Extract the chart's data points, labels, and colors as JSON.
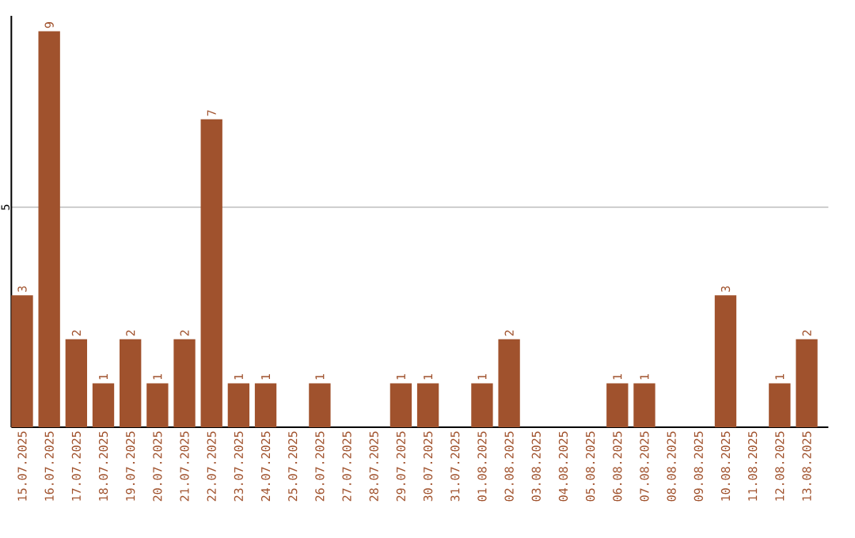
{
  "chart_data": {
    "type": "bar",
    "categories": [
      "15.07.2025",
      "16.07.2025",
      "17.07.2025",
      "18.07.2025",
      "19.07.2025",
      "20.07.2025",
      "21.07.2025",
      "22.07.2025",
      "23.07.2025",
      "24.07.2025",
      "25.07.2025",
      "26.07.2025",
      "27.07.2025",
      "28.07.2025",
      "29.07.2025",
      "30.07.2025",
      "31.07.2025",
      "01.08.2025",
      "02.08.2025",
      "03.08.2025",
      "04.08.2025",
      "05.08.2025",
      "06.08.2025",
      "07.08.2025",
      "08.08.2025",
      "09.08.2025",
      "10.08.2025",
      "11.08.2025",
      "12.08.2025",
      "13.08.2025"
    ],
    "values": [
      3,
      9,
      2,
      1,
      2,
      1,
      2,
      7,
      1,
      1,
      0,
      1,
      0,
      0,
      1,
      1,
      0,
      1,
      2,
      0,
      0,
      0,
      1,
      1,
      0,
      0,
      3,
      0,
      1,
      2
    ],
    "value_labels": [
      "3",
      "9",
      "2",
      "1",
      "2",
      "1",
      "2",
      "7",
      "1",
      "1",
      null,
      "1",
      null,
      null,
      "1",
      "1",
      null,
      "1",
      "2",
      null,
      null,
      null,
      "1",
      "1",
      null,
      null,
      "3",
      null,
      "1",
      "2"
    ],
    "color": "#a0522d",
    "ylim": [
      0,
      9.35
    ],
    "yticks": [
      5
    ],
    "grid": "y"
  }
}
